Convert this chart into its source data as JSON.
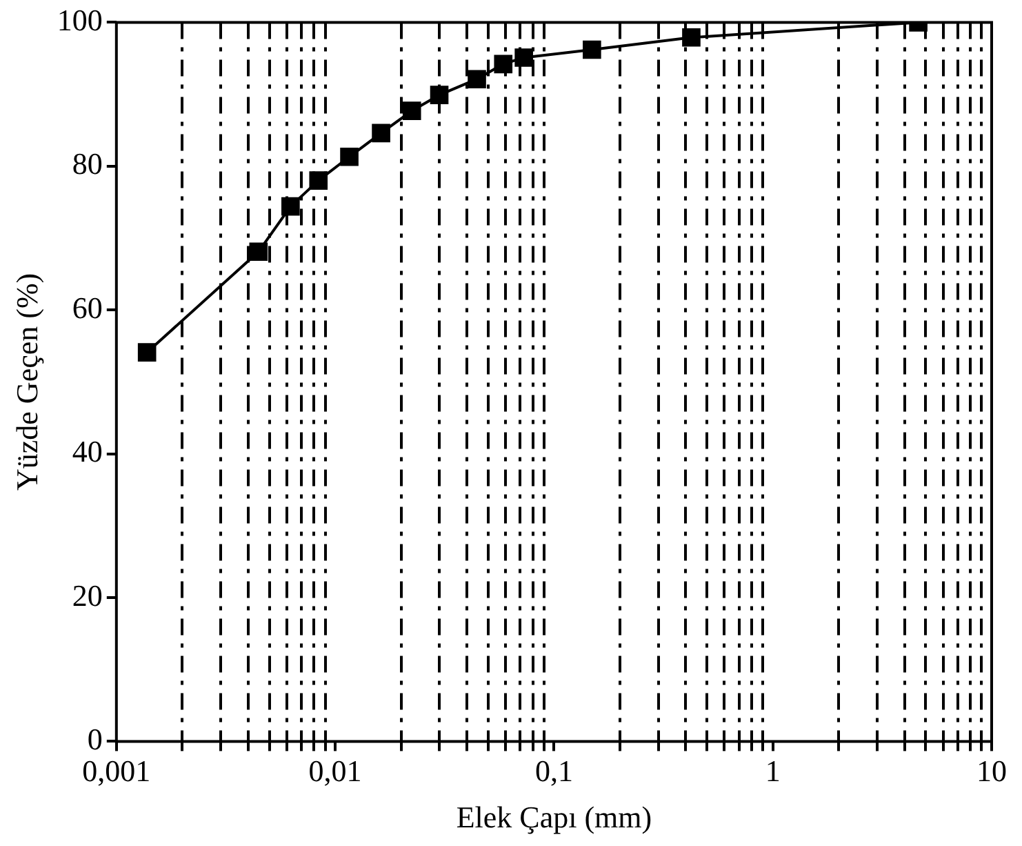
{
  "chart_data": {
    "type": "line",
    "xlabel": "Elek Çapı (mm)",
    "ylabel": "Yüzde Geçen (%)",
    "log": "x",
    "x": [
      0.00138,
      0.00446,
      0.00625,
      0.00838,
      0.0116,
      0.0162,
      0.0224,
      0.0299,
      0.0444,
      0.0586,
      0.0728,
      0.149,
      0.424,
      4.62
    ],
    "series": [
      {
        "color": "#000000",
        "values": [
          54.1,
          68.1,
          74.4,
          78.0,
          81.3,
          84.6,
          87.7,
          89.9,
          92.1,
          94.2,
          95.1,
          96.2,
          97.9,
          100
        ]
      }
    ],
    "xlim": [
      0.001,
      10
    ],
    "xticks": [
      {
        "value": 0.001,
        "label": "0,001"
      },
      {
        "value": 0.002,
        "label": null
      },
      {
        "value": 0.003,
        "label": null
      },
      {
        "value": 0.004,
        "label": null
      },
      {
        "value": 0.005,
        "label": null
      },
      {
        "value": 0.006,
        "label": null
      },
      {
        "value": 0.007,
        "label": null
      },
      {
        "value": 0.008,
        "label": null
      },
      {
        "value": 0.009,
        "label": null
      },
      {
        "value": 0.01,
        "label": "0,01"
      },
      {
        "value": 0.02,
        "label": null
      },
      {
        "value": 0.03,
        "label": null
      },
      {
        "value": 0.04,
        "label": null
      },
      {
        "value": 0.05,
        "label": null
      },
      {
        "value": 0.06,
        "label": null
      },
      {
        "value": 0.07,
        "label": null
      },
      {
        "value": 0.08,
        "label": null
      },
      {
        "value": 0.09,
        "label": null
      },
      {
        "value": 0.1,
        "label": "0,1"
      },
      {
        "value": 0.2,
        "label": null
      },
      {
        "value": 0.3,
        "label": null
      },
      {
        "value": 0.4,
        "label": null
      },
      {
        "value": 0.5,
        "label": null
      },
      {
        "value": 0.6,
        "label": null
      },
      {
        "value": 0.7,
        "label": null
      },
      {
        "value": 0.8,
        "label": null
      },
      {
        "value": 0.9,
        "label": null
      },
      1,
      {
        "value": 2,
        "label": null
      },
      {
        "value": 3,
        "label": null
      },
      {
        "value": 4,
        "label": null
      },
      {
        "value": 5,
        "label": null
      },
      {
        "value": 6,
        "label": null
      },
      {
        "value": 7,
        "label": null
      },
      {
        "value": 8,
        "label": null
      },
      {
        "value": 9,
        "label": null
      },
      10
    ],
    "ylim": [
      0,
      100
    ],
    "yticks": [
      0,
      20,
      40,
      60,
      80,
      100
    ],
    "grid": "x",
    "marker": "square",
    "line_style": "solid"
  }
}
